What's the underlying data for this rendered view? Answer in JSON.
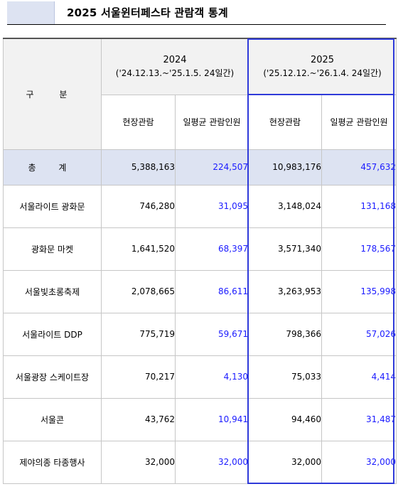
{
  "title": "2025 서울윈터페스타 관람객 통계",
  "table": {
    "category_header": "구 분",
    "years": [
      {
        "year": "2024",
        "period": "('24.12.13.~'25.1.5. 24일간)"
      },
      {
        "year": "2025",
        "period": "('25.12.12.~'26.1.4. 24일간)"
      }
    ],
    "sub_headers": [
      "현장관람",
      "일평균 관람인원",
      "현장관람",
      "일평균 관람인원"
    ],
    "total": {
      "label": "총 계",
      "values": [
        "5,388,163",
        "224,507",
        "10,983,176",
        "457,632"
      ]
    },
    "rows": [
      {
        "label": "서울라이트 광화문",
        "values": [
          "746,280",
          "31,095",
          "3,148,024",
          "131,168"
        ]
      },
      {
        "label": "광화문 마켓",
        "values": [
          "1,641,520",
          "68,397",
          "3,571,340",
          "178,567"
        ]
      },
      {
        "label": "서울빛초롱축제",
        "values": [
          "2,078,665",
          "86,611",
          "3,263,953",
          "135,998"
        ]
      },
      {
        "label": "서울라이트 DDP",
        "values": [
          "775,719",
          "59,671",
          "798,366",
          "57,026"
        ]
      },
      {
        "label": "서울광장 스케이트장",
        "values": [
          "70,217",
          "4,130",
          "75,033",
          "4,414"
        ]
      },
      {
        "label": "서울콘",
        "values": [
          "43,762",
          "10,941",
          "94,460",
          "31,487"
        ]
      },
      {
        "label": "제야의종 타종행사",
        "values": [
          "32,000",
          "32,000",
          "32,000",
          "32,000"
        ]
      }
    ],
    "colors": {
      "header_bg": "#f2f2f2",
      "total_bg": "#dde3f2",
      "daily_avg_text": "#1a1aff",
      "highlight_border": "#2f3ad9"
    }
  }
}
